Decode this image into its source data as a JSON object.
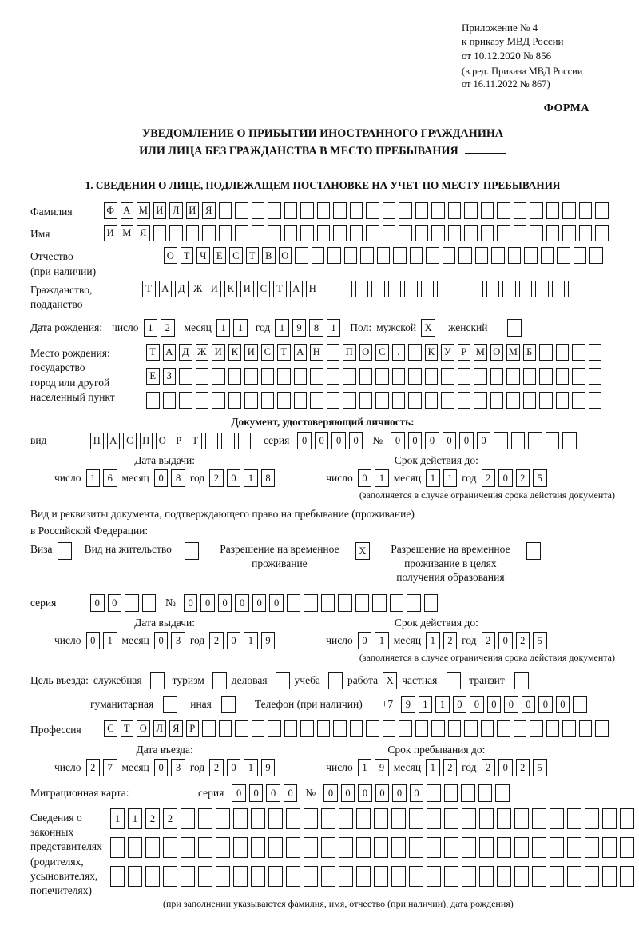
{
  "header": {
    "lines": [
      "Приложение № 4",
      "к приказу МВД России",
      "от 10.12.2020 № 856"
    ],
    "sub_lines": [
      "(в ред. Приказа МВД России",
      "от 16.11.2022 № 867)"
    ],
    "forma": "ФОРМА"
  },
  "title": {
    "line1": "УВЕДОМЛЕНИЕ О ПРИБЫТИИ ИНОСТРАННОГО ГРАЖДАНИНА",
    "line2": "ИЛИ ЛИЦА БЕЗ ГРАЖДАНСТВА В МЕСТО ПРЕБЫВАНИЯ"
  },
  "section1_heading": "1. СВЕДЕНИЯ О ЛИЦЕ, ПОДЛЕЖАЩЕМ ПОСТАНОВКЕ НА УЧЕТ ПО МЕСТУ ПРЕБЫВАНИЯ",
  "date_labels": {
    "day": "число",
    "month": "месяц",
    "year": "год"
  },
  "surname": {
    "label": "Фамилия",
    "value": "ФАМИЛИЯ",
    "cells": 31
  },
  "name": {
    "label": "Имя",
    "value": "ИМЯ",
    "cells": 31
  },
  "patronymic": {
    "label_lines": [
      "Отчество",
      "(при наличии)"
    ],
    "value": "ОТЧЕСТВО",
    "cells": 27
  },
  "citizenship": {
    "label_lines": [
      "Гражданство,",
      "подданство"
    ],
    "value": "ТАДЖИКИСТАН",
    "cells": 28
  },
  "birth": {
    "label": "Дата рождения:",
    "day": {
      "value": "12",
      "cells": 2
    },
    "month": {
      "value": "11",
      "cells": 2
    },
    "year": {
      "value": "1981",
      "cells": 4
    },
    "gender_label": "Пол:",
    "male": {
      "label": "мужской",
      "value": "X",
      "cells": 1
    },
    "female": {
      "label": "женский",
      "value": "",
      "cells": 1
    }
  },
  "birth_place": {
    "label_lines": [
      "Место рождения:",
      "государство",
      "город или другой",
      "населенный пункт"
    ],
    "rows": [
      {
        "value": "ТАДЖИКИСТАН ПОС. КУРМОМБ",
        "cells": 28
      },
      {
        "value": "ЕЗ",
        "cells": 28
      },
      {
        "value": "",
        "cells": 28
      }
    ]
  },
  "identity": {
    "heading": "Документ, удостоверяющий личность:",
    "vid_label": "вид",
    "vid": {
      "value": "ПАСПОРТ",
      "cells": 10
    },
    "seriya_label": "серия",
    "seriya": {
      "value": "0000",
      "cells": 4
    },
    "num_label": "№",
    "number": {
      "value": "000000",
      "cells": 11
    },
    "issue_heading": "Дата выдачи:",
    "issue": {
      "day": {
        "value": "16",
        "cells": 2
      },
      "month": {
        "value": "08",
        "cells": 2
      },
      "year": {
        "value": "2018",
        "cells": 4
      }
    },
    "valid_heading": "Срок действия до:",
    "valid": {
      "day": {
        "value": "01",
        "cells": 2
      },
      "month": {
        "value": "11",
        "cells": 2
      },
      "year": {
        "value": "2025",
        "cells": 4
      }
    },
    "note": "(заполняется в случае ограничения срока действия документа)"
  },
  "residence": {
    "intro_line1": "Вид и реквизиты документа, подтверждающего право на пребывание (проживание)",
    "intro_line2": "в Российской Федерации:",
    "options": [
      {
        "label": "Виза",
        "value": "",
        "cells": 1
      },
      {
        "label": "Вид на жительство",
        "value": "",
        "cells": 1
      },
      {
        "label": "Разрешение на временное проживание",
        "value": "X",
        "cells": 1
      },
      {
        "label": "Разрешение на временное проживание в целях получения образования",
        "value": "",
        "cells": 1
      }
    ],
    "seriya_label": "серия",
    "seriya": {
      "value": "00",
      "cells": 4
    },
    "num_label": "№",
    "number": {
      "value": "000000",
      "cells": 15
    },
    "issue_heading": "Дата выдачи:",
    "issue": {
      "day": {
        "value": "01",
        "cells": 2
      },
      "month": {
        "value": "03",
        "cells": 2
      },
      "year": {
        "value": "2019",
        "cells": 4
      }
    },
    "valid_heading": "Срок действия до:",
    "valid": {
      "day": {
        "value": "01",
        "cells": 2
      },
      "month": {
        "value": "12",
        "cells": 2
      },
      "year": {
        "value": "2025",
        "cells": 4
      }
    },
    "note": "(заполняется в случае ограничения срока действия документа)"
  },
  "purpose": {
    "label": "Цель въезда:",
    "options": [
      {
        "label": "служебная",
        "value": "",
        "cells": 1
      },
      {
        "label": "туризм",
        "value": "",
        "cells": 1
      },
      {
        "label": "деловая",
        "value": "",
        "cells": 1
      },
      {
        "label": "учеба",
        "value": "",
        "cells": 1
      },
      {
        "label": "работа",
        "value": "X",
        "cells": 1
      },
      {
        "label": "частная",
        "value": "",
        "cells": 1
      },
      {
        "label": "транзит",
        "value": "",
        "cells": 1
      },
      {
        "label": "гуманитарная",
        "value": "",
        "cells": 1
      },
      {
        "label": "иная",
        "value": "",
        "cells": 1
      }
    ],
    "phone_label": "Телефон (при наличии)",
    "phone_prefix": "+7",
    "phone": {
      "value": "9110000000",
      "cells": 11
    }
  },
  "profession": {
    "label": "Профессия",
    "value": "СТОЛЯР",
    "cells": 31
  },
  "entry": {
    "entry_heading": "Дата въезда:",
    "entry_date": {
      "day": {
        "value": "27",
        "cells": 2
      },
      "month": {
        "value": "03",
        "cells": 2
      },
      "year": {
        "value": "2019",
        "cells": 4
      }
    },
    "stay_heading": "Срок пребывания до:",
    "stay_date": {
      "day": {
        "value": "19",
        "cells": 2
      },
      "month": {
        "value": "12",
        "cells": 2
      },
      "year": {
        "value": "2025",
        "cells": 4
      }
    }
  },
  "migration_card": {
    "label": "Миграционная карта:",
    "seriya_label": "серия",
    "seriya": {
      "value": "0000",
      "cells": 4
    },
    "num_label": "№",
    "number": {
      "value": "000000",
      "cells": 11
    }
  },
  "legal_reps": {
    "label_lines": [
      "Сведения о",
      "законных",
      "представителях",
      "(родителях,",
      "усыновителях,",
      "попечителях)"
    ],
    "rows": [
      {
        "value": "1122",
        "cells": 30
      },
      {
        "value": "",
        "cells": 30
      },
      {
        "value": "",
        "cells": 30
      }
    ],
    "note": "(при заполнении указываются фамилия, имя, отчество (при наличии), дата рождения)"
  }
}
